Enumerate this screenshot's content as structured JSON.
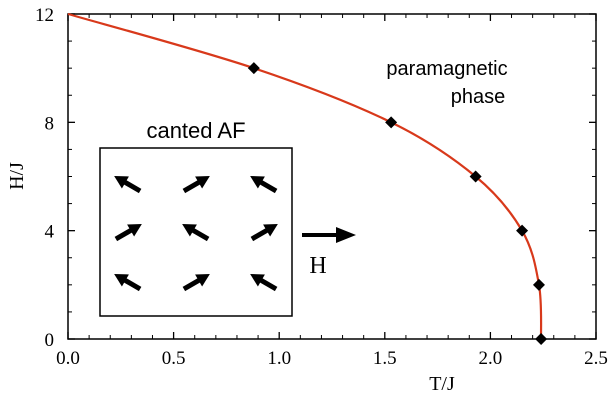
{
  "chart_data": {
    "type": "line",
    "title": "",
    "xlabel": "T/J",
    "ylabel": "H/J",
    "xlim": [
      0,
      2.5
    ],
    "ylim": [
      0,
      12
    ],
    "x_ticks": [
      "0.0",
      "0.5",
      "1.0",
      "1.5",
      "2.0",
      "2.5"
    ],
    "y_ticks": [
      "0",
      "4",
      "8",
      "12"
    ],
    "grid": false,
    "line_color": "#d8391b",
    "marker_color": "#000000",
    "series": [
      {
        "name": "",
        "marker": "diamond",
        "x": [
          2.24,
          2.23,
          2.15,
          1.93,
          1.53,
          0.88
        ],
        "y": [
          0,
          2,
          4,
          6,
          8,
          10
        ]
      }
    ],
    "curve": {
      "x": [
        0.0,
        0.88,
        1.53,
        1.93,
        2.15,
        2.23,
        2.24
      ],
      "y": [
        12,
        10,
        8,
        6,
        4,
        2,
        0
      ]
    },
    "annotations": {
      "paramagnetic_line1": "paramagnetic",
      "paramagnetic_line2": "phase",
      "canted_label": "canted AF",
      "field_label": "H"
    }
  }
}
